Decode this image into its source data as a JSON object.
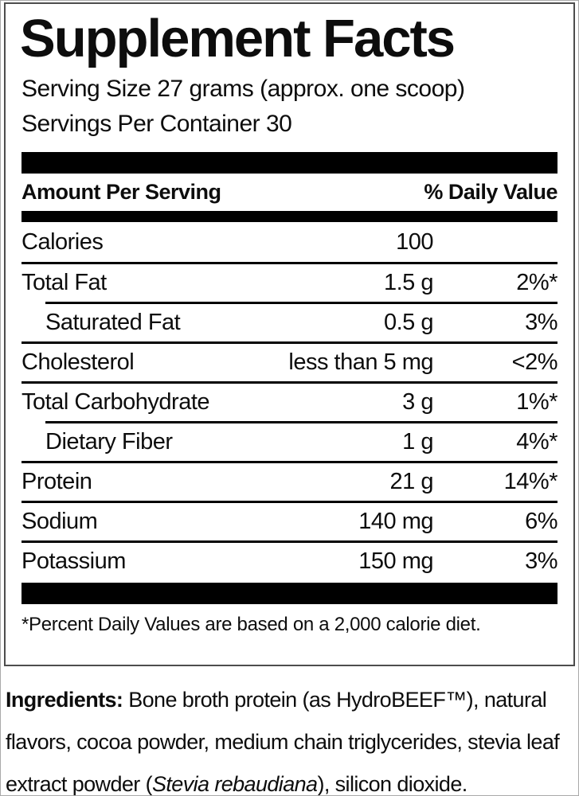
{
  "label": {
    "title": "Supplement Facts",
    "serving_size": "Serving Size 27 grams (approx. one scoop)",
    "servings_per_container": "Servings Per Container 30",
    "table": {
      "header": {
        "amount_col": "Amount Per Serving",
        "dv_col": "% Daily Value"
      },
      "rows": [
        {
          "name": "Calories",
          "amount": "100",
          "dv": "",
          "indent": false
        },
        {
          "name": "Total Fat",
          "amount": "1.5 g",
          "dv": "2%*",
          "indent": false
        },
        {
          "name": "Saturated Fat",
          "amount": "0.5 g",
          "dv": "3%",
          "indent": true
        },
        {
          "name": "Cholesterol",
          "amount": "less than 5 mg",
          "dv": "<2%",
          "indent": false
        },
        {
          "name": "Total Carbohydrate",
          "amount": "3 g",
          "dv": "1%*",
          "indent": false
        },
        {
          "name": "Dietary Fiber",
          "amount": "1 g",
          "dv": "4%*",
          "indent": true
        },
        {
          "name": "Protein",
          "amount": "21 g",
          "dv": "14%*",
          "indent": false
        },
        {
          "name": "Sodium",
          "amount": "140 mg",
          "dv": "6%",
          "indent": false
        },
        {
          "name": "Potassium",
          "amount": "150 mg",
          "dv": "3%",
          "indent": false
        }
      ]
    },
    "footnote": "*Percent Daily Values are based on a 2,000 calorie diet."
  },
  "ingredients": {
    "label": "Ingredients:",
    "segments": [
      {
        "text": " Bone broth protein (as HydroBEEF™), natural flavors, cocoa powder, medium chain triglycerides, stevia leaf extract powder (",
        "style": "regular"
      },
      {
        "text": "Stevia rebaudiana",
        "style": "italic"
      },
      {
        "text": "), silicon dioxide.",
        "style": "regular"
      }
    ]
  },
  "colors": {
    "text": "#0d0d0d",
    "bar": "#000000",
    "box_border": "#4d4d4d",
    "page_border": "#a9a9a9",
    "background": "#ffffff"
  }
}
